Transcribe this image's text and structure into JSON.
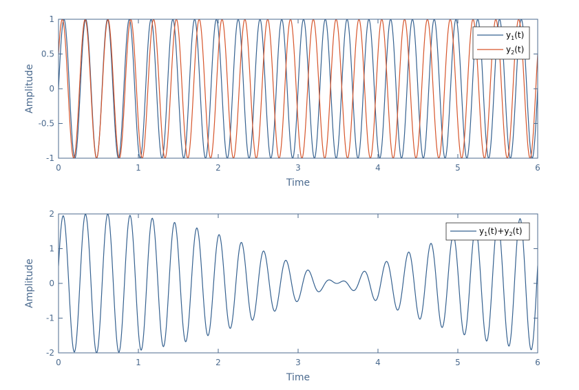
{
  "colors": {
    "series1": "#34608f",
    "series2": "#d6542a",
    "axis": "#4b6a8e",
    "background": "#ffffff"
  },
  "chart_data": [
    {
      "type": "line",
      "xlabel": "Time",
      "ylabel": "Amplitude",
      "xlim": [
        0,
        6
      ],
      "ylim": [
        -1,
        1
      ],
      "xticks": [
        0,
        1,
        2,
        3,
        4,
        5,
        6
      ],
      "xtick_labels": [
        "0",
        "1",
        "2",
        "3",
        "4",
        "5",
        "6"
      ],
      "yticks": [
        -1,
        -0.5,
        0,
        0.5,
        1
      ],
      "ytick_labels": [
        "-1",
        "-0.5",
        "0",
        "0.5",
        "1"
      ],
      "grid": false,
      "legend_position": "top-right",
      "series": [
        {
          "legend": {
            "base": "y",
            "sub": "1",
            "tail": "(t)"
          },
          "color": "series1",
          "function": "sin(2*pi*3.667*t)",
          "amplitude": 1,
          "frequency": 3.667,
          "phase": 0,
          "x_range": [
            0,
            6
          ],
          "samples": 1201
        },
        {
          "legend": {
            "base": "y",
            "sub": "2",
            "tail": "(t)"
          },
          "color": "series2",
          "function": "sin(2*pi*3.5*t + 0.5236)",
          "amplitude": 1,
          "frequency": 3.5,
          "phase": 0.5236,
          "x_range": [
            0,
            6
          ],
          "samples": 1201
        }
      ]
    },
    {
      "type": "line",
      "xlabel": "Time",
      "ylabel": "Amplitude",
      "xlim": [
        0,
        6
      ],
      "ylim": [
        -2,
        2
      ],
      "xticks": [
        0,
        1,
        2,
        3,
        4,
        5,
        6
      ],
      "xtick_labels": [
        "0",
        "1",
        "2",
        "3",
        "4",
        "5",
        "6"
      ],
      "yticks": [
        -2,
        -1,
        0,
        1,
        2
      ],
      "ytick_labels": [
        "-2",
        "-1",
        "0",
        "1",
        "2"
      ],
      "grid": false,
      "legend_position": "top-right",
      "series": [
        {
          "legend": {
            "base": "y",
            "sub": "1",
            "tail": "(t)+",
            "base2": "y",
            "sub2": "2",
            "tail2": "(t)"
          },
          "color": "series1",
          "function": "sin(2*pi*3.667*t) + sin(2*pi*3.5*t + 0.5236)",
          "x_range": [
            0,
            6
          ],
          "samples": 1201
        }
      ]
    }
  ]
}
